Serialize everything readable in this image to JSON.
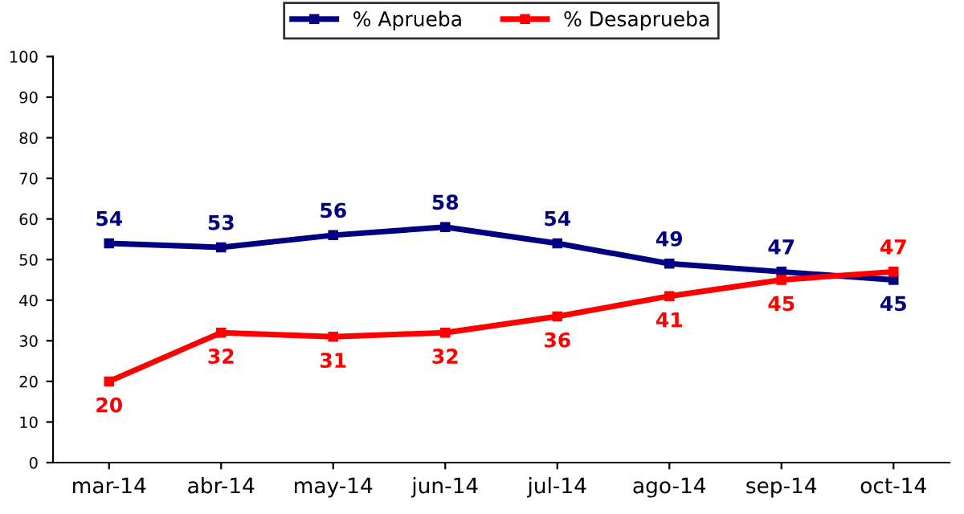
{
  "chart_data": {
    "type": "line",
    "categories": [
      "mar-14",
      "abr-14",
      "may-14",
      "jun-14",
      "jul-14",
      "ago-14",
      "sep-14",
      "oct-14"
    ],
    "series": [
      {
        "name": "% Aprueba",
        "color": "#000080",
        "values": [
          54,
          53,
          56,
          58,
          54,
          49,
          47,
          45
        ]
      },
      {
        "name": "% Desaprueba",
        "color": "#ff0000",
        "values": [
          20,
          32,
          31,
          32,
          36,
          41,
          45,
          47
        ]
      }
    ],
    "ylim": [
      0,
      100
    ],
    "yticks": [
      0,
      10,
      20,
      30,
      40,
      50,
      60,
      70,
      80,
      90,
      100
    ],
    "grid": false,
    "legend": "top",
    "marker": "square",
    "line_style": "solid",
    "data_labels": true
  }
}
